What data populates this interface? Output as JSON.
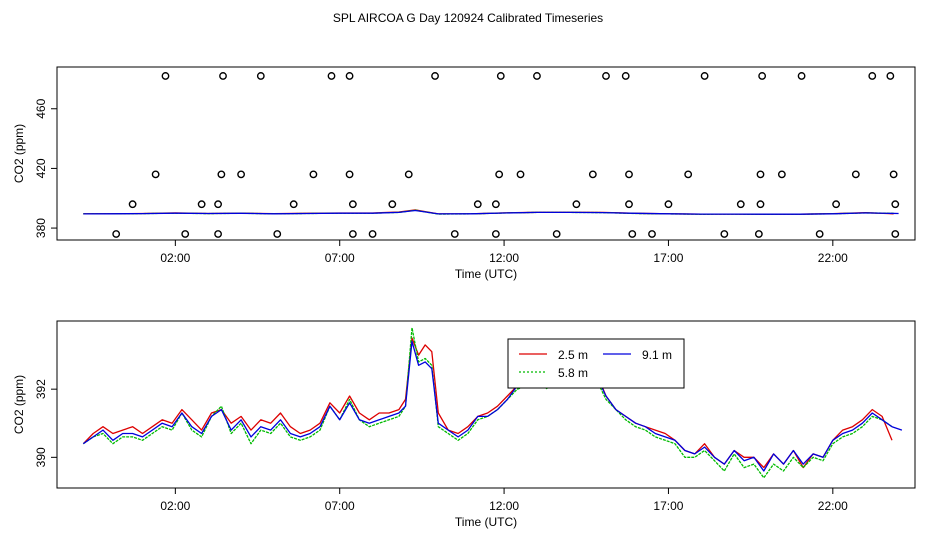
{
  "page": {
    "title": "SPL AIRCOA G  Day 120924  Calibrated Timeseries"
  },
  "colors": {
    "s2_5": "#dd0000",
    "s5_8": "#00bb00",
    "s9_1": "#0000dd",
    "outlier": "#000000"
  },
  "chart_data": [
    {
      "type": "scatter",
      "xlabel": "Time (UTC)",
      "ylabel": "CO2 (ppm)",
      "xlim": [
        -1.6,
        24.5
      ],
      "ylim": [
        372,
        488
      ],
      "xticks": [
        2,
        7,
        12,
        17,
        22
      ],
      "xtick_labels": [
        "02:00",
        "07:00",
        "12:00",
        "17:00",
        "22:00"
      ],
      "yticks": [
        380,
        420,
        460
      ],
      "ytick_labels": [
        "380",
        "420",
        "460"
      ],
      "grid": false,
      "points": [
        {
          "x": 0.2,
          "y": 376
        },
        {
          "x": 0.7,
          "y": 396
        },
        {
          "x": 1.4,
          "y": 416
        },
        {
          "x": 1.7,
          "y": 482
        },
        {
          "x": 2.3,
          "y": 376
        },
        {
          "x": 2.8,
          "y": 396
        },
        {
          "x": 3.3,
          "y": 376
        },
        {
          "x": 3.3,
          "y": 396
        },
        {
          "x": 3.4,
          "y": 416
        },
        {
          "x": 3.45,
          "y": 482
        },
        {
          "x": 4.0,
          "y": 416
        },
        {
          "x": 4.6,
          "y": 482
        },
        {
          "x": 5.1,
          "y": 376
        },
        {
          "x": 5.6,
          "y": 396
        },
        {
          "x": 6.2,
          "y": 416
        },
        {
          "x": 6.75,
          "y": 482
        },
        {
          "x": 7.3,
          "y": 416
        },
        {
          "x": 7.3,
          "y": 482
        },
        {
          "x": 7.4,
          "y": 396
        },
        {
          "x": 7.4,
          "y": 376
        },
        {
          "x": 8.0,
          "y": 376
        },
        {
          "x": 8.6,
          "y": 396
        },
        {
          "x": 9.1,
          "y": 416
        },
        {
          "x": 9.9,
          "y": 482
        },
        {
          "x": 10.5,
          "y": 376
        },
        {
          "x": 11.2,
          "y": 396
        },
        {
          "x": 11.75,
          "y": 396
        },
        {
          "x": 11.75,
          "y": 376
        },
        {
          "x": 11.85,
          "y": 416
        },
        {
          "x": 11.9,
          "y": 482
        },
        {
          "x": 12.5,
          "y": 416
        },
        {
          "x": 13.0,
          "y": 482
        },
        {
          "x": 13.6,
          "y": 376
        },
        {
          "x": 14.2,
          "y": 396
        },
        {
          "x": 14.7,
          "y": 416
        },
        {
          "x": 15.1,
          "y": 482
        },
        {
          "x": 15.7,
          "y": 482
        },
        {
          "x": 15.8,
          "y": 416
        },
        {
          "x": 15.8,
          "y": 396
        },
        {
          "x": 15.9,
          "y": 376
        },
        {
          "x": 16.5,
          "y": 376
        },
        {
          "x": 17.0,
          "y": 396
        },
        {
          "x": 17.6,
          "y": 416
        },
        {
          "x": 18.1,
          "y": 482
        },
        {
          "x": 18.7,
          "y": 376
        },
        {
          "x": 19.2,
          "y": 396
        },
        {
          "x": 19.75,
          "y": 376
        },
        {
          "x": 19.8,
          "y": 396
        },
        {
          "x": 19.8,
          "y": 416
        },
        {
          "x": 19.85,
          "y": 482
        },
        {
          "x": 20.45,
          "y": 416
        },
        {
          "x": 21.05,
          "y": 482
        },
        {
          "x": 21.6,
          "y": 376
        },
        {
          "x": 22.1,
          "y": 396
        },
        {
          "x": 22.7,
          "y": 416
        },
        {
          "x": 23.2,
          "y": 482
        },
        {
          "x": 23.75,
          "y": 482
        },
        {
          "x": 23.85,
          "y": 416
        },
        {
          "x": 23.9,
          "y": 396
        },
        {
          "x": 23.9,
          "y": 376
        }
      ],
      "series": [
        {
          "name": "2.5 m",
          "x": [
            -0.8,
            0,
            1,
            2,
            3,
            4,
            5,
            6,
            7,
            8,
            8.8,
            9.3,
            10,
            11,
            12,
            13,
            14,
            15,
            16,
            17,
            18,
            19,
            20,
            21,
            22,
            23,
            23.85
          ],
          "y": [
            389.6,
            389.6,
            389.8,
            390.2,
            389.8,
            390,
            389.7,
            389.9,
            390.1,
            390.1,
            390.8,
            392.2,
            389.5,
            389.6,
            390.2,
            390.6,
            390.6,
            390.5,
            389.9,
            389.6,
            389.4,
            389.4,
            389.3,
            389.3,
            389.7,
            390.3,
            389.6
          ]
        },
        {
          "name": "5.8 m",
          "x": [
            -0.8,
            0,
            1,
            2,
            3,
            4,
            5,
            6,
            7,
            8,
            8.8,
            9.3,
            10,
            11,
            12,
            13,
            14,
            15,
            16,
            17,
            18,
            19,
            20,
            21,
            22,
            23,
            23.85
          ],
          "y": [
            389.5,
            389.5,
            389.7,
            390,
            389.7,
            389.9,
            389.6,
            389.8,
            390,
            390,
            390.5,
            392.0,
            389.4,
            389.5,
            390.1,
            390.5,
            390.5,
            390.4,
            389.8,
            389.5,
            389.3,
            389.4,
            389.2,
            389.3,
            389.6,
            390.2,
            389.9
          ]
        },
        {
          "name": "9.1 m",
          "x": [
            -0.8,
            0,
            1,
            2,
            3,
            4,
            5,
            6,
            7,
            8,
            8.8,
            9.3,
            10,
            11,
            12,
            13,
            14,
            15,
            16,
            17,
            18,
            19,
            20,
            21,
            22,
            23,
            24
          ],
          "y": [
            389.5,
            389.6,
            389.7,
            390,
            389.8,
            389.9,
            389.6,
            389.8,
            390,
            390,
            390.5,
            391.8,
            389.5,
            389.6,
            390.1,
            390.5,
            390.5,
            390.4,
            389.9,
            389.6,
            389.4,
            389.4,
            389.3,
            389.3,
            389.6,
            390.2,
            389.8
          ]
        }
      ]
    },
    {
      "type": "line",
      "xlabel": "Time (UTC)",
      "ylabel": "CO2 (ppm)",
      "xlim": [
        -1.6,
        24.5
      ],
      "ylim": [
        389.1,
        394.0
      ],
      "xticks": [
        2,
        7,
        12,
        17,
        22
      ],
      "xtick_labels": [
        "02:00",
        "07:00",
        "12:00",
        "17:00",
        "22:00"
      ],
      "yticks": [
        390,
        392
      ],
      "ytick_labels": [
        "390",
        "392"
      ],
      "grid": false,
      "legend": {
        "placement": "top-center",
        "labels": [
          "2.5 m",
          "5.8 m",
          "9.1 m"
        ]
      },
      "series": [
        {
          "name": "2.5 m",
          "x": [
            -0.8,
            -0.5,
            -0.2,
            0.1,
            0.4,
            0.7,
            1.0,
            1.3,
            1.6,
            1.9,
            2.2,
            2.5,
            2.8,
            3.1,
            3.4,
            3.7,
            4.0,
            4.3,
            4.6,
            4.9,
            5.2,
            5.5,
            5.8,
            6.1,
            6.4,
            6.7,
            7.0,
            7.3,
            7.6,
            7.9,
            8.2,
            8.5,
            8.8,
            9.0,
            9.2,
            9.4,
            9.6,
            9.8,
            10.0,
            10.3,
            10.6,
            10.9,
            11.2,
            11.5,
            11.8,
            12.1,
            12.4,
            12.7,
            13.0,
            13.3,
            13.6,
            13.9,
            14.2,
            14.5,
            14.8,
            15.1,
            15.4,
            15.7,
            16.0,
            16.3,
            16.6,
            16.9,
            17.2,
            17.5,
            17.8,
            18.1,
            18.4,
            18.7,
            19.0,
            19.3,
            19.6,
            19.9,
            20.2,
            20.5,
            20.8,
            21.1,
            21.4,
            21.7,
            22.0,
            22.3,
            22.6,
            22.9,
            23.2,
            23.5,
            23.8
          ],
          "y": [
            390.4,
            390.7,
            390.9,
            390.7,
            390.8,
            390.9,
            390.7,
            390.9,
            391.1,
            391.0,
            391.4,
            391.1,
            390.8,
            391.3,
            391.4,
            391.0,
            391.2,
            390.8,
            391.1,
            391.0,
            391.3,
            390.9,
            390.7,
            390.8,
            391.0,
            391.6,
            391.3,
            391.8,
            391.3,
            391.1,
            391.3,
            391.3,
            391.4,
            391.7,
            393.5,
            393.0,
            393.3,
            393.1,
            391.3,
            390.8,
            390.7,
            390.9,
            391.2,
            391.3,
            391.5,
            391.8,
            392.1,
            392.2,
            392.5,
            392.2,
            392.5,
            392.3,
            392.5,
            392.2,
            392.5,
            391.8,
            391.4,
            391.2,
            391.0,
            390.9,
            390.8,
            390.7,
            390.5,
            390.2,
            390.1,
            390.4,
            390.0,
            389.8,
            390.2,
            390.0,
            390.0,
            389.7,
            390.1,
            389.8,
            390.2,
            389.7,
            390.1,
            390.0,
            390.5,
            390.8,
            390.9,
            391.1,
            391.4,
            391.2,
            390.5
          ]
        },
        {
          "name": "5.8 m",
          "x": [
            -0.8,
            -0.5,
            -0.2,
            0.1,
            0.4,
            0.7,
            1.0,
            1.3,
            1.6,
            1.9,
            2.2,
            2.5,
            2.8,
            3.1,
            3.4,
            3.7,
            4.0,
            4.3,
            4.6,
            4.9,
            5.2,
            5.5,
            5.8,
            6.1,
            6.4,
            6.7,
            7.0,
            7.3,
            7.6,
            7.9,
            8.2,
            8.5,
            8.8,
            9.0,
            9.2,
            9.4,
            9.6,
            9.8,
            10.0,
            10.3,
            10.6,
            10.9,
            11.2,
            11.5,
            11.8,
            12.1,
            12.4,
            12.7,
            13.0,
            13.3,
            13.6,
            13.9,
            14.2,
            14.5,
            14.8,
            15.1,
            15.4,
            15.7,
            16.0,
            16.3,
            16.6,
            16.9,
            17.2,
            17.5,
            17.8,
            18.1,
            18.4,
            18.7,
            19.0,
            19.3,
            19.6,
            19.9,
            20.2,
            20.5,
            20.8,
            21.1,
            21.4,
            21.7,
            22.0,
            22.3,
            22.6,
            22.9,
            23.2,
            23.5,
            23.8
          ],
          "y": [
            390.4,
            390.6,
            390.7,
            390.4,
            390.6,
            390.6,
            390.5,
            390.7,
            390.9,
            390.8,
            391.3,
            390.8,
            390.6,
            391.2,
            391.5,
            390.7,
            391.0,
            390.4,
            390.8,
            390.7,
            391.0,
            390.6,
            390.5,
            390.6,
            390.8,
            391.5,
            391.1,
            391.7,
            391.1,
            390.9,
            391.0,
            391.1,
            391.2,
            391.5,
            393.8,
            392.8,
            392.9,
            392.7,
            390.9,
            390.7,
            390.5,
            390.7,
            391.1,
            391.2,
            391.4,
            391.7,
            392.0,
            392.1,
            392.5,
            392.0,
            392.4,
            392.1,
            392.3,
            392.1,
            392.3,
            391.7,
            391.4,
            391.1,
            390.9,
            390.8,
            390.6,
            390.5,
            390.4,
            390.0,
            390.0,
            390.2,
            389.9,
            389.6,
            390.1,
            389.7,
            389.8,
            389.4,
            389.8,
            389.6,
            390.0,
            389.7,
            390.0,
            389.9,
            390.4,
            390.6,
            390.7,
            390.9,
            391.2,
            391.1,
            390.9
          ]
        },
        {
          "name": "9.1 m",
          "x": [
            -0.8,
            -0.5,
            -0.2,
            0.1,
            0.4,
            0.7,
            1.0,
            1.3,
            1.6,
            1.9,
            2.2,
            2.5,
            2.8,
            3.1,
            3.4,
            3.7,
            4.0,
            4.3,
            4.6,
            4.9,
            5.2,
            5.5,
            5.8,
            6.1,
            6.4,
            6.7,
            7.0,
            7.3,
            7.6,
            7.9,
            8.2,
            8.5,
            8.8,
            9.0,
            9.2,
            9.4,
            9.6,
            9.8,
            10.0,
            10.3,
            10.6,
            10.9,
            11.2,
            11.5,
            11.8,
            12.1,
            12.4,
            12.7,
            13.0,
            13.3,
            13.6,
            13.9,
            14.2,
            14.5,
            14.8,
            15.1,
            15.4,
            15.7,
            16.0,
            16.3,
            16.6,
            16.9,
            17.2,
            17.5,
            17.8,
            18.1,
            18.4,
            18.7,
            19.0,
            19.3,
            19.6,
            19.9,
            20.2,
            20.5,
            20.8,
            21.1,
            21.4,
            21.7,
            22.0,
            22.3,
            22.6,
            22.9,
            23.2,
            23.5,
            23.8,
            24.1
          ],
          "y": [
            390.4,
            390.6,
            390.8,
            390.5,
            390.7,
            390.7,
            390.6,
            390.8,
            391.0,
            390.9,
            391.3,
            390.9,
            390.7,
            391.2,
            391.4,
            390.8,
            391.1,
            390.6,
            390.9,
            390.8,
            391.1,
            390.7,
            390.6,
            390.7,
            390.9,
            391.5,
            391.1,
            391.6,
            391.1,
            391.0,
            391.1,
            391.2,
            391.3,
            391.5,
            393.4,
            392.7,
            392.8,
            392.6,
            391.0,
            390.8,
            390.6,
            390.8,
            391.2,
            391.2,
            391.4,
            391.7,
            392.1,
            392.2,
            392.6,
            392.1,
            392.5,
            392.2,
            392.4,
            392.2,
            392.4,
            391.8,
            391.4,
            391.2,
            391.0,
            390.9,
            390.7,
            390.6,
            390.5,
            390.2,
            390.1,
            390.3,
            390.0,
            389.8,
            390.2,
            389.9,
            390.0,
            389.6,
            390.1,
            389.8,
            390.2,
            389.8,
            390.1,
            390.0,
            390.5,
            390.7,
            390.8,
            391.0,
            391.3,
            391.1,
            390.9,
            390.8
          ]
        }
      ]
    }
  ]
}
